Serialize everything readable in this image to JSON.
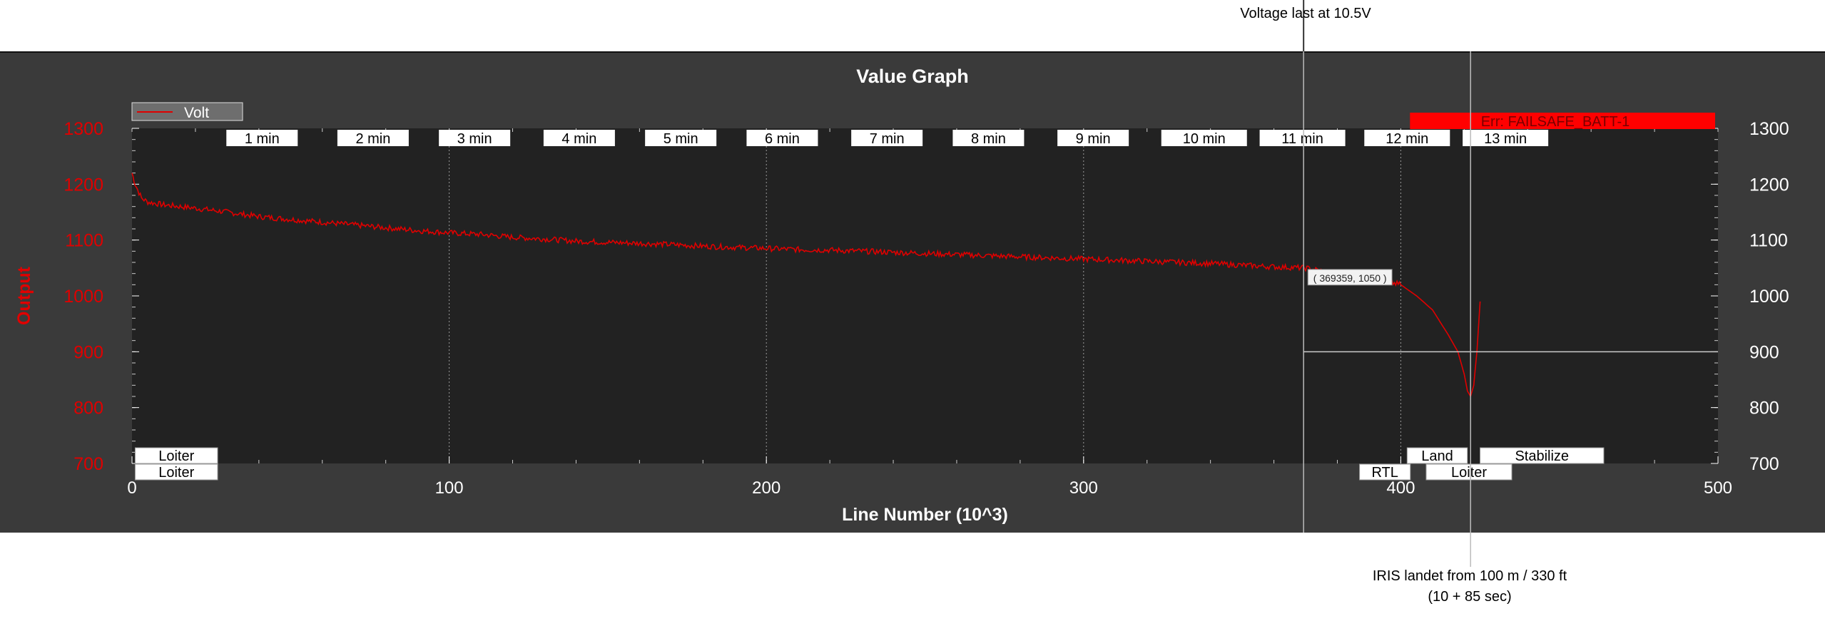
{
  "annotations": {
    "voltage_note": "Voltage last at 10.5V",
    "landing_note_line1": "IRIS landet from 100 m / 330 ft",
    "landing_note_line2": "(10 + 85 sec)"
  },
  "chart_data": {
    "type": "line",
    "title": "Value Graph",
    "xlabel": "Line Number (10^3)",
    "ylabel": "Output",
    "xlim": [
      0,
      500
    ],
    "ylim": [
      700,
      1300
    ],
    "x_ticks": [
      "0",
      "100",
      "200",
      "300",
      "400",
      "500"
    ],
    "y_ticks": [
      "700",
      "800",
      "900",
      "1000",
      "1100",
      "1200",
      "1300"
    ],
    "grid": "vertical dotted at x ticks",
    "legend_position": "top-left",
    "colors": {
      "series": "#e00000",
      "plot_bg": "#222222",
      "panel_bg": "#3a3a3a",
      "axis_text_left": "#e00000",
      "axis_text_right": "#ffffff"
    },
    "series": [
      {
        "name": "Volt",
        "x": [
          0,
          1,
          3,
          5,
          10,
          20,
          30,
          40,
          50,
          60,
          70,
          80,
          90,
          100,
          110,
          120,
          130,
          140,
          150,
          160,
          170,
          180,
          190,
          200,
          210,
          220,
          230,
          240,
          250,
          260,
          270,
          280,
          290,
          300,
          310,
          320,
          330,
          340,
          350,
          360,
          370,
          380,
          390,
          400,
          405,
          410,
          415,
          418,
          420,
          421,
          422,
          423,
          424,
          425
        ],
        "y": [
          1220,
          1200,
          1175,
          1168,
          1163,
          1157,
          1150,
          1142,
          1137,
          1132,
          1127,
          1122,
          1117,
          1113,
          1110,
          1105,
          1102,
          1098,
          1096,
          1094,
          1092,
          1089,
          1087,
          1085,
          1083,
          1082,
          1080,
          1078,
          1076,
          1074,
          1072,
          1070,
          1068,
          1066,
          1064,
          1062,
          1060,
          1058,
          1055,
          1052,
          1050,
          1040,
          1032,
          1020,
          1000,
          975,
          930,
          900,
          860,
          830,
          820,
          840,
          900,
          990
        ]
      }
    ],
    "time_markers": [
      {
        "label": "1 min",
        "x": 41
      },
      {
        "label": "2 min",
        "x": 76
      },
      {
        "label": "3 min",
        "x": 108
      },
      {
        "label": "4 min",
        "x": 141
      },
      {
        "label": "5 min",
        "x": 173
      },
      {
        "label": "6 min",
        "x": 205
      },
      {
        "label": "7 min",
        "x": 238
      },
      {
        "label": "8 min",
        "x": 270
      },
      {
        "label": "9 min",
        "x": 303
      },
      {
        "label": "10 min",
        "x": 338
      },
      {
        "label": "11 min",
        "x": 369
      },
      {
        "label": "12 min",
        "x": 402
      },
      {
        "label": "13 min",
        "x": 433
      }
    ],
    "error_banner": {
      "label": "Err: FAILSAFE_BATT-1",
      "x_start": 402,
      "x_end": 500
    },
    "mode_labels_row1": [
      {
        "label": "Loiter",
        "x_start": 1,
        "x_end": 27
      },
      {
        "label": "Land",
        "x_start": 402,
        "x_end": 421
      },
      {
        "label": "Stabilize",
        "x_start": 425,
        "x_end": 464
      }
    ],
    "mode_labels_row2": [
      {
        "label": "Loiter",
        "x_start": 1,
        "x_end": 27
      },
      {
        "label": "RTL",
        "x_start": 387,
        "x_end": 403
      },
      {
        "label": "Loiter",
        "x_start": 408,
        "x_end": 435
      }
    ],
    "cursor_readout": {
      "label": "( 369359, 1050 )",
      "x": 369.359,
      "y": 1050
    },
    "crosshair": {
      "x": 369.359,
      "y": 900
    }
  }
}
